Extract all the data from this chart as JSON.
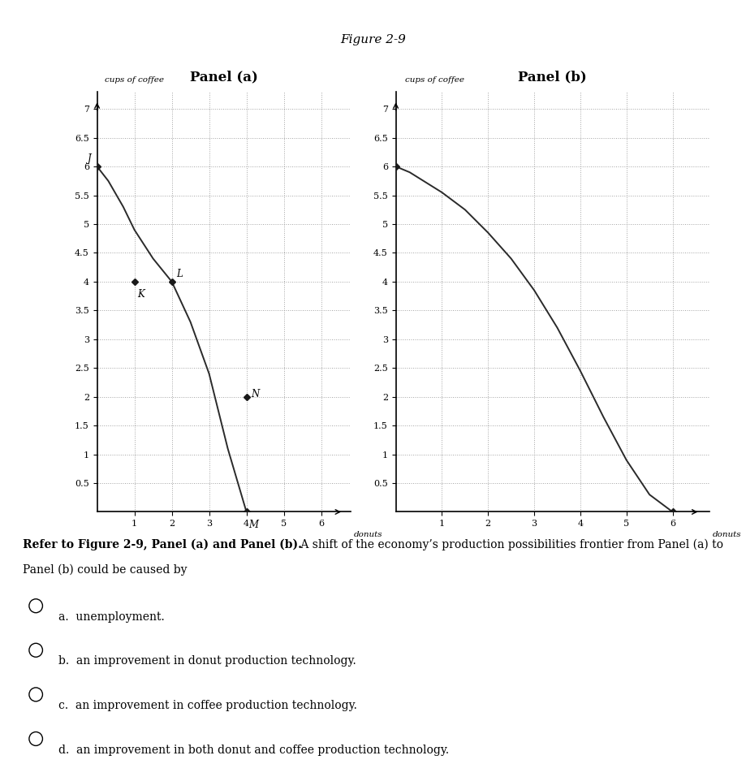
{
  "figure_title": "Figure 2-9",
  "panel_a_title": "Panel (a)",
  "panel_b_title": "Panel (b)",
  "ylabel": "cups of coffee",
  "xlabel": "donuts",
  "panel_a_curve_x": [
    0,
    0.3,
    0.7,
    1.0,
    1.5,
    2.0,
    2.5,
    3.0,
    3.5,
    4.0
  ],
  "panel_a_curve_y": [
    6.0,
    5.75,
    5.3,
    4.9,
    4.4,
    4.0,
    3.3,
    2.4,
    1.1,
    0.0
  ],
  "panel_b_curve_x": [
    0,
    0.3,
    0.7,
    1.0,
    1.5,
    2.0,
    2.5,
    3.0,
    3.5,
    4.0,
    4.5,
    5.0,
    5.5,
    6.0
  ],
  "panel_b_curve_y": [
    6.0,
    5.9,
    5.7,
    5.55,
    5.25,
    4.85,
    4.4,
    3.85,
    3.2,
    2.45,
    1.65,
    0.9,
    0.3,
    0.0
  ],
  "panel_a_points": {
    "J": [
      0,
      6
    ],
    "K": [
      1,
      4
    ],
    "L": [
      2,
      4
    ],
    "N": [
      4,
      2
    ],
    "M": [
      4,
      0
    ]
  },
  "panel_b_endpoint": [
    6,
    0
  ],
  "panel_b_startpoint": [
    0,
    6
  ],
  "xlim": [
    0,
    6.8
  ],
  "ylim": [
    0,
    7.3
  ],
  "xticks": [
    1,
    2,
    3,
    4,
    5,
    6
  ],
  "yticks": [
    0.5,
    1,
    1.5,
    2,
    2.5,
    3,
    3.5,
    4,
    4.5,
    5,
    5.5,
    6,
    6.5,
    7
  ],
  "ytick_labels": [
    "0.5",
    "1",
    "1.5",
    "2",
    "2.5",
    "3",
    "3.5",
    "4",
    "4.5",
    "5",
    "5.5",
    "6",
    "6.5",
    "7"
  ],
  "curve_color": "#2a2a2a",
  "point_color": "#1a1a1a",
  "grid_color": "#999999",
  "bg_color": "#ffffff",
  "question_bold": "Refer to Figure 2-9, Panel (a) and Panel (b).",
  "question_normal": " A shift of the economy’s production possibilities frontier from Panel (a) to Panel (b) could be caused by",
  "question_line2": "Panel (b) could be caused by",
  "options": [
    "a.  unemployment.",
    "b.  an improvement in donut production technology.",
    "c.  an improvement in coffee production technology.",
    "d.  an improvement in both donut and coffee production technology."
  ]
}
